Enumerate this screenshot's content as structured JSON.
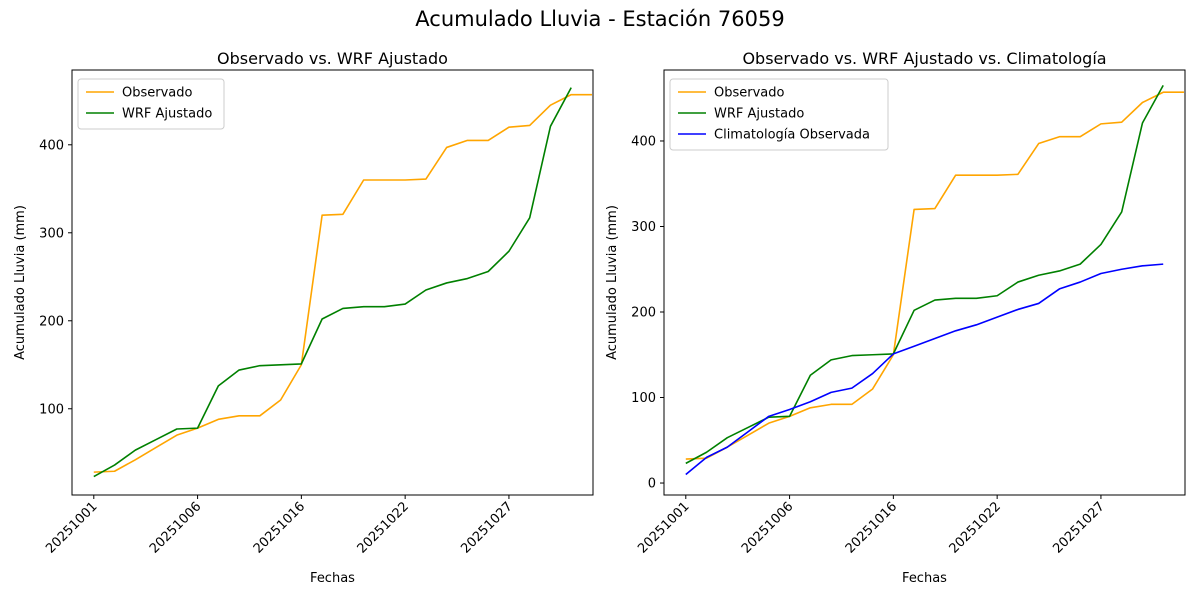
{
  "figure": {
    "suptitle": "Acumulado Lluvia - Estación 76059"
  },
  "chart_data": [
    {
      "type": "line",
      "title": "Observado vs. WRF Ajustado",
      "xlabel": "Fechas",
      "ylabel": "Acumulado Lluvia (mm)",
      "x_tick_labels": [
        "20251001",
        "20251006",
        "20251016",
        "20251022",
        "20251027"
      ],
      "y_ticks": [
        100,
        200,
        300,
        400
      ],
      "ylim": [
        2,
        485
      ],
      "legend_position": "upper left",
      "grid": false,
      "series": [
        {
          "name": "Observado",
          "color": "#FFA500",
          "values": [
            28,
            29,
            42,
            56,
            70,
            78,
            88,
            92,
            92,
            110,
            150,
            320,
            321,
            360,
            360,
            360,
            361,
            397,
            405,
            405,
            420,
            422,
            445,
            457,
            457
          ]
        },
        {
          "name": "WRF Ajustado",
          "color": "#008000",
          "values": [
            23,
            36,
            53,
            65,
            77,
            78,
            126,
            144,
            149,
            150,
            151,
            202,
            214,
            216,
            216,
            219,
            235,
            243,
            248,
            256,
            279,
            317,
            421,
            465
          ]
        }
      ]
    },
    {
      "type": "line",
      "title": "Observado vs. WRF Ajustado vs. Climatología",
      "xlabel": "Fechas",
      "ylabel": "Acumulado Lluvia (mm)",
      "x_tick_labels": [
        "20251001",
        "20251006",
        "20251016",
        "20251022",
        "20251027"
      ],
      "y_ticks": [
        0,
        100,
        200,
        300,
        400
      ],
      "ylim": [
        -14,
        483
      ],
      "legend_position": "upper left",
      "grid": false,
      "series": [
        {
          "name": "Observado",
          "color": "#FFA500",
          "values": [
            28,
            29,
            42,
            56,
            70,
            78,
            88,
            92,
            92,
            110,
            150,
            320,
            321,
            360,
            360,
            360,
            361,
            397,
            405,
            405,
            420,
            422,
            445,
            457,
            457
          ]
        },
        {
          "name": "WRF Ajustado",
          "color": "#008000",
          "values": [
            23,
            36,
            53,
            65,
            77,
            78,
            126,
            144,
            149,
            150,
            151,
            202,
            214,
            216,
            216,
            219,
            235,
            243,
            248,
            256,
            279,
            317,
            421,
            465
          ]
        },
        {
          "name": "Climatología Observada",
          "color": "#0000FF",
          "values": [
            10,
            30,
            42,
            60,
            78,
            86,
            95,
            106,
            111,
            128,
            151,
            160,
            169,
            178,
            185,
            194,
            203,
            210,
            227,
            235,
            245,
            250,
            254,
            256
          ]
        }
      ]
    }
  ]
}
